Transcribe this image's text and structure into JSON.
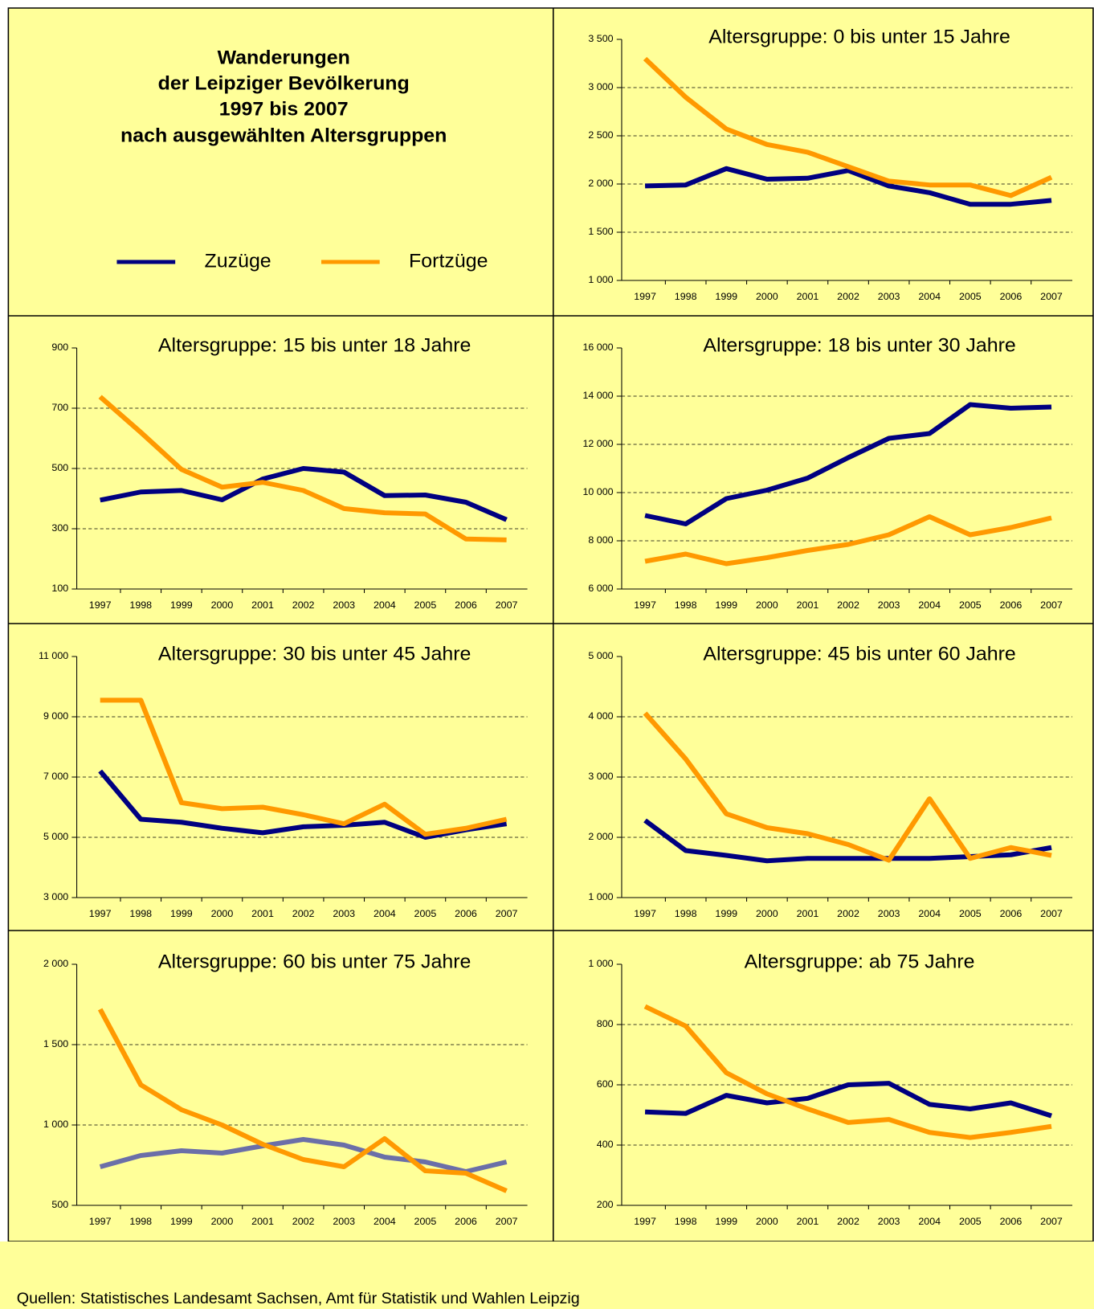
{
  "header": {
    "title_lines": [
      "Wanderungen",
      "der Leipziger Bevölkerung",
      "1997 bis 2007",
      "nach ausgewählten Altersgruppen"
    ]
  },
  "source": "Quellen: Statistisches Landesamt Sachsen, Amt für Statistik und Wahlen Leipzig",
  "chart_data": [
    {
      "type": "line",
      "title": "Altersgruppe: 0 bis unter 15 Jahre",
      "categories": [
        "1997",
        "1998",
        "1999",
        "2000",
        "2001",
        "2002",
        "2003",
        "2004",
        "2005",
        "2006",
        "2007"
      ],
      "series": [
        {
          "name": "Zuzüge",
          "color": "#000080",
          "values": [
            1980,
            1990,
            2160,
            2050,
            2060,
            2140,
            1980,
            1910,
            1790,
            1790,
            1830
          ]
        },
        {
          "name": "Fortzüge",
          "color": "#ff9900",
          "values": [
            3300,
            2900,
            2570,
            2410,
            2330,
            2180,
            2030,
            1990,
            1990,
            1880,
            2070
          ]
        }
      ],
      "ylim": [
        1000,
        3500
      ],
      "yticks": [
        {
          "value": 1000,
          "label": "1 000"
        },
        {
          "value": 1500,
          "label": "1 500"
        },
        {
          "value": 2000,
          "label": "2 000"
        },
        {
          "value": 2500,
          "label": "2 500"
        },
        {
          "value": 3000,
          "label": "3 000"
        },
        {
          "value": 3500,
          "label": "3 500"
        }
      ],
      "grid": true
    },
    {
      "type": "line",
      "title": "Altersgruppe: 15 bis unter 18 Jahre",
      "categories": [
        "1997",
        "1998",
        "1999",
        "2000",
        "2001",
        "2002",
        "2003",
        "2004",
        "2005",
        "2006",
        "2007"
      ],
      "series": [
        {
          "name": "Zuzüge",
          "color": "#000080",
          "values": [
            395,
            422,
            427,
            396,
            465,
            500,
            488,
            410,
            412,
            388,
            330
          ]
        },
        {
          "name": "Fortzüge",
          "color": "#ff9900",
          "values": [
            738,
            620,
            497,
            438,
            454,
            427,
            367,
            353,
            349,
            266,
            263
          ]
        }
      ],
      "ylim": [
        100,
        900
      ],
      "yticks": [
        100,
        300,
        500,
        700,
        900
      ],
      "grid": true
    },
    {
      "type": "line",
      "title": "Altersgruppe: 18 bis unter 30 Jahre",
      "categories": [
        "1997",
        "1998",
        "1999",
        "2000",
        "2001",
        "2002",
        "2003",
        "2004",
        "2005",
        "2006",
        "2007"
      ],
      "series": [
        {
          "name": "Zuzüge",
          "color": "#000080",
          "values": [
            9050,
            8700,
            9750,
            10100,
            10600,
            11450,
            12250,
            12450,
            13650,
            13500,
            13550
          ]
        },
        {
          "name": "Fortzüge",
          "color": "#ff9900",
          "values": [
            7150,
            7450,
            7050,
            7300,
            7600,
            7850,
            8250,
            9000,
            8250,
            8550,
            8950
          ]
        }
      ],
      "ylim": [
        6000,
        16000
      ],
      "yticks": [
        {
          "value": 6000,
          "label": "6 000"
        },
        {
          "value": 8000,
          "label": "8 000"
        },
        {
          "value": 10000,
          "label": "10 000"
        },
        {
          "value": 12000,
          "label": "12 000"
        },
        {
          "value": 14000,
          "label": "14 000"
        },
        {
          "value": 16000,
          "label": "16 000"
        }
      ],
      "grid": true
    },
    {
      "type": "line",
      "title": "Altersgruppe: 30 bis unter 45 Jahre",
      "categories": [
        "1997",
        "1998",
        "1999",
        "2000",
        "2001",
        "2002",
        "2003",
        "2004",
        "2005",
        "2006",
        "2007"
      ],
      "series": [
        {
          "name": "Zuzüge",
          "color": "#000080",
          "values": [
            7200,
            5600,
            5500,
            5300,
            5150,
            5350,
            5400,
            5500,
            5000,
            5250,
            5450
          ]
        },
        {
          "name": "Fortzüge",
          "color": "#ff9900",
          "values": [
            9550,
            9550,
            6150,
            5950,
            6000,
            5750,
            5450,
            6100,
            5100,
            5300,
            5600
          ]
        }
      ],
      "ylim": [
        3000,
        11000
      ],
      "yticks": [
        {
          "value": 3000,
          "label": "3 000"
        },
        {
          "value": 5000,
          "label": "5 000"
        },
        {
          "value": 7000,
          "label": "7 000"
        },
        {
          "value": 9000,
          "label": "9 000"
        },
        {
          "value": 11000,
          "label": "11 000"
        }
      ],
      "grid": true
    },
    {
      "type": "line",
      "title": "Altersgruppe: 45 bis unter 60 Jahre",
      "categories": [
        "1997",
        "1998",
        "1999",
        "2000",
        "2001",
        "2002",
        "2003",
        "2004",
        "2005",
        "2006",
        "2007"
      ],
      "series": [
        {
          "name": "Zuzüge",
          "color": "#000080",
          "values": [
            2280,
            1780,
            1700,
            1610,
            1650,
            1650,
            1650,
            1650,
            1680,
            1710,
            1830
          ]
        },
        {
          "name": "Fortzüge",
          "color": "#ff9900",
          "values": [
            4060,
            3300,
            2390,
            2160,
            2060,
            1880,
            1620,
            2640,
            1650,
            1830,
            1700
          ]
        }
      ],
      "ylim": [
        1000,
        5000
      ],
      "yticks": [
        {
          "value": 1000,
          "label": "1 000"
        },
        {
          "value": 2000,
          "label": "2 000"
        },
        {
          "value": 3000,
          "label": "3 000"
        },
        {
          "value": 4000,
          "label": "4 000"
        },
        {
          "value": 5000,
          "label": "5 000"
        }
      ],
      "grid": true
    },
    {
      "type": "line",
      "title": "Altersgruppe: 60 bis unter 75 Jahre",
      "categories": [
        "1997",
        "1998",
        "1999",
        "2000",
        "2001",
        "2002",
        "2003",
        "2004",
        "2005",
        "2006",
        "2007"
      ],
      "series": [
        {
          "name": "Zuzüge",
          "color": "#6b6fa8",
          "values": [
            740,
            810,
            840,
            825,
            870,
            910,
            875,
            800,
            770,
            710,
            770
          ]
        },
        {
          "name": "Fortzüge",
          "color": "#ff9900",
          "values": [
            1720,
            1250,
            1095,
            1000,
            880,
            785,
            740,
            915,
            715,
            700,
            590
          ]
        }
      ],
      "ylim": [
        500,
        2000
      ],
      "yticks": [
        500,
        {
          "value": 1000,
          "label": "1 000"
        },
        {
          "value": 1500,
          "label": "1 500"
        },
        {
          "value": 2000,
          "label": "2 000"
        }
      ],
      "grid": true
    },
    {
      "type": "line",
      "title": "Altersgruppe: ab 75 Jahre",
      "categories": [
        "1997",
        "1998",
        "1999",
        "2000",
        "2001",
        "2002",
        "2003",
        "2004",
        "2005",
        "2006",
        "2007"
      ],
      "series": [
        {
          "name": "Zuzüge",
          "color": "#000080",
          "values": [
            510,
            505,
            565,
            540,
            555,
            600,
            605,
            535,
            520,
            540,
            497
          ]
        },
        {
          "name": "Fortzüge",
          "color": "#ff9900",
          "values": [
            860,
            795,
            640,
            570,
            520,
            475,
            485,
            442,
            425,
            442,
            462
          ]
        }
      ],
      "ylim": [
        200,
        1000
      ],
      "yticks": [
        200,
        400,
        600,
        800,
        {
          "value": 1000,
          "label": "1 000"
        }
      ],
      "grid": true
    }
  ]
}
